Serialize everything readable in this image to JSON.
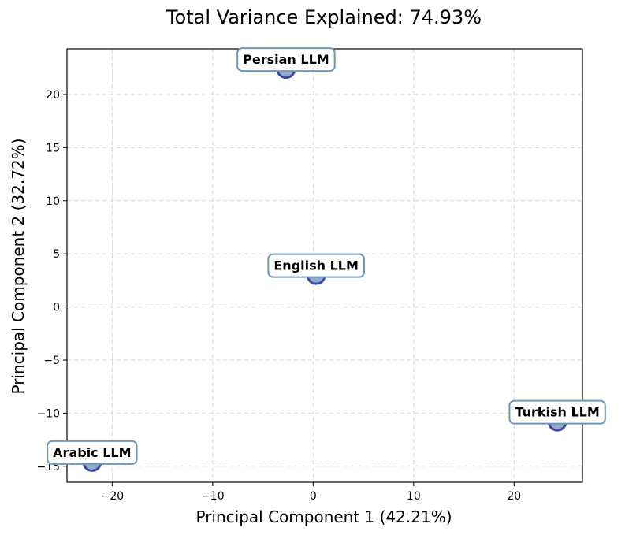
{
  "chart_data": {
    "type": "scatter",
    "title": "Total Variance Explained: 74.93%",
    "xlabel": "Principal Component 1 (42.21%)",
    "ylabel": "Principal Component 2 (32.72%)",
    "xlim": [
      -24.5,
      26.8
    ],
    "ylim": [
      -16.5,
      24.3
    ],
    "xticks": [
      -20,
      -10,
      0,
      10,
      20
    ],
    "yticks": [
      -15,
      -10,
      -5,
      0,
      5,
      10,
      15,
      20
    ],
    "xtick_labels": [
      "−20",
      "−10",
      "0",
      "10",
      "20"
    ],
    "ytick_labels": [
      "−15",
      "−10",
      "−5",
      "0",
      "5",
      "10",
      "15",
      "20"
    ],
    "grid": true,
    "marker_fill": "#8aaac8",
    "marker_edge": "#4046b0",
    "label_edge": "#6f97b8",
    "points": [
      {
        "name": "Persian LLM",
        "x": -2.7,
        "y": 22.4
      },
      {
        "name": "English LLM",
        "x": 0.3,
        "y": 3.0
      },
      {
        "name": "Turkish LLM",
        "x": 24.3,
        "y": -10.8
      },
      {
        "name": "Arabic LLM",
        "x": -22.0,
        "y": -14.6
      }
    ]
  }
}
